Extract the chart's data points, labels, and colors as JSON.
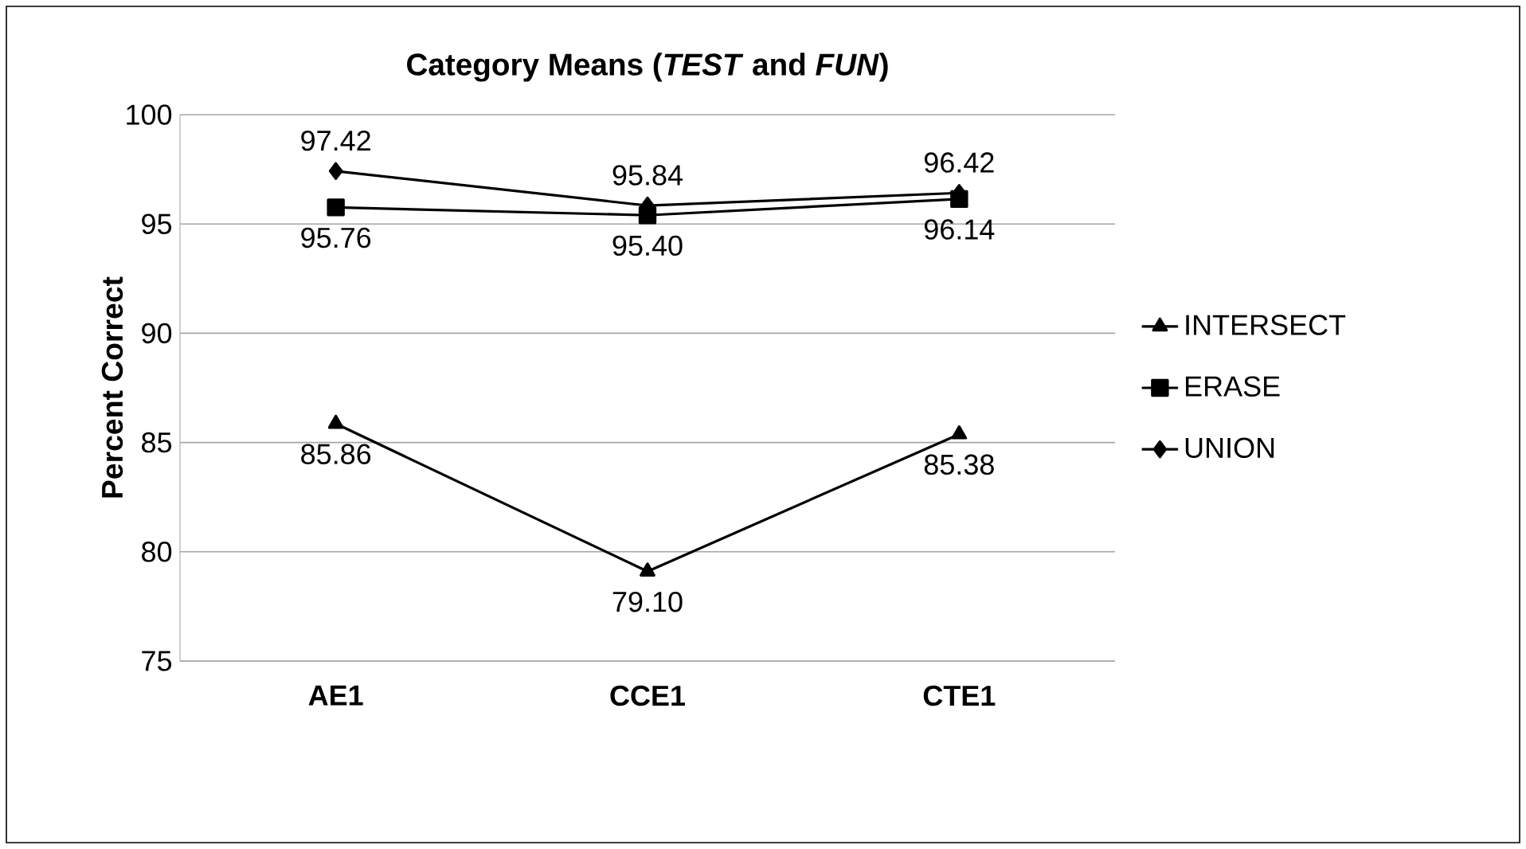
{
  "chart_data": {
    "type": "line",
    "title": "**Category Means (*TEST* and *FUN*)**",
    "ylabel": "Percent Correct",
    "categories": [
      "AE1",
      "CCE1",
      "CTE1"
    ],
    "series": [
      {
        "name": "INTERSECT",
        "color": "#000000",
        "marker": "triangle",
        "values": [
          85.86,
          79.1,
          85.38
        ],
        "value_labels": [
          "85.86",
          "79.10",
          "85.38"
        ]
      },
      {
        "name": "ERASE",
        "color": "#000000",
        "marker": "square",
        "values": [
          95.76,
          95.4,
          96.14
        ],
        "value_labels": [
          "95.76",
          "95.40",
          "96.14"
        ]
      },
      {
        "name": "UNION",
        "color": "#000000",
        "marker": "diamond",
        "values": [
          97.42,
          95.84,
          96.42
        ],
        "value_labels": [
          "97.42",
          "95.84",
          "96.42"
        ]
      }
    ],
    "ylim": [
      75,
      100
    ],
    "yticks": [
      75,
      80,
      85,
      90,
      95,
      100
    ],
    "grid": "y",
    "legend": "right",
    "line_style": "solid"
  }
}
